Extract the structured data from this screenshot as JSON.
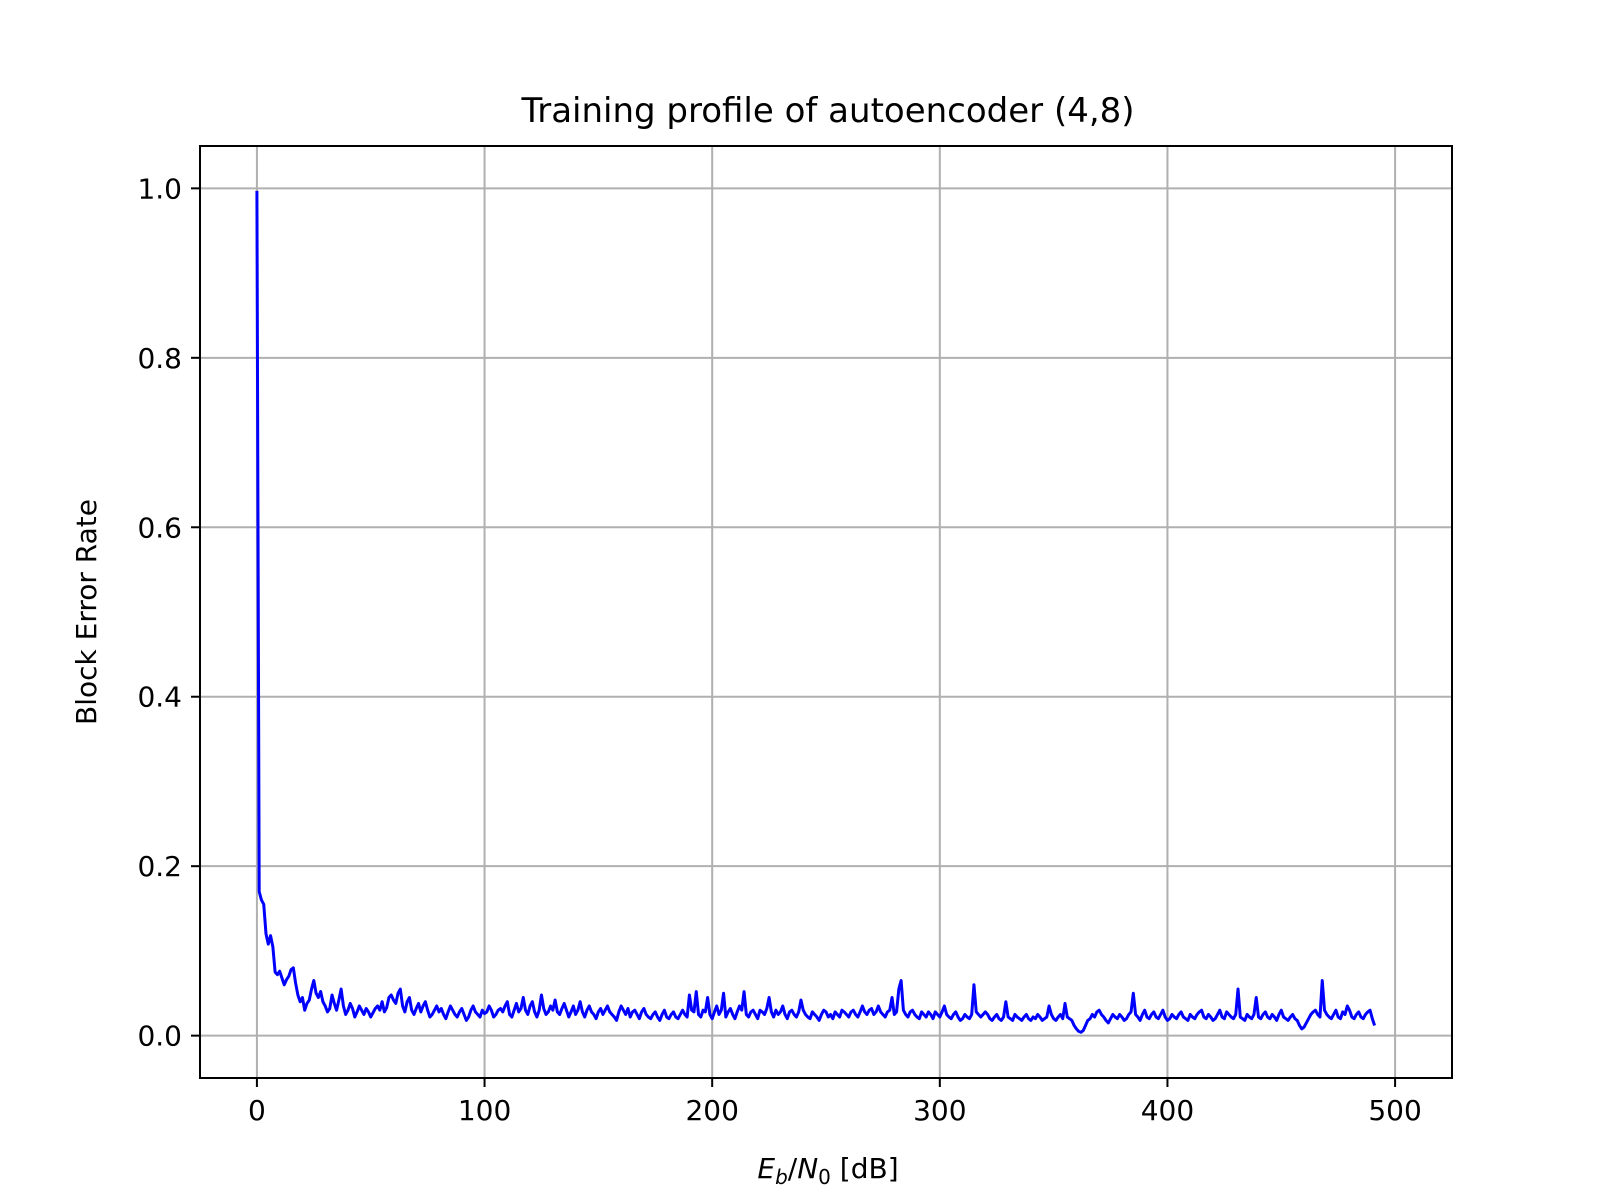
{
  "chart_data": {
    "type": "line",
    "title": "Training profile of autoencoder (4,8)",
    "xlabel": {
      "main_1": "E",
      "sub_1": "b",
      "slash": "/",
      "main_2": "N",
      "sub_2": "0",
      "unit": " [dB]"
    },
    "ylabel": "Block Error Rate",
    "xlim": [
      -25,
      525
    ],
    "ylim": [
      -0.05,
      1.05
    ],
    "grid": true,
    "xticks": [
      0,
      100,
      200,
      300,
      400,
      500
    ],
    "xtick_labels": [
      "0",
      "100",
      "200",
      "300",
      "400",
      "500"
    ],
    "yticks": [
      0.0,
      0.2,
      0.4,
      0.6,
      0.8,
      1.0
    ],
    "ytick_labels": [
      "0.0",
      "0.2",
      "0.4",
      "0.6",
      "0.8",
      "1.0"
    ],
    "series": [
      {
        "color": "#0000ff",
        "x_start": 0,
        "x_step": 1,
        "values": [
          0.997,
          0.17,
          0.16,
          0.155,
          0.12,
          0.108,
          0.118,
          0.105,
          0.075,
          0.072,
          0.076,
          0.068,
          0.06,
          0.066,
          0.07,
          0.078,
          0.08,
          0.062,
          0.048,
          0.04,
          0.045,
          0.03,
          0.038,
          0.042,
          0.055,
          0.065,
          0.05,
          0.045,
          0.052,
          0.04,
          0.035,
          0.028,
          0.032,
          0.048,
          0.038,
          0.03,
          0.042,
          0.055,
          0.035,
          0.025,
          0.03,
          0.038,
          0.032,
          0.022,
          0.028,
          0.035,
          0.03,
          0.025,
          0.032,
          0.028,
          0.022,
          0.027,
          0.032,
          0.035,
          0.03,
          0.04,
          0.028,
          0.033,
          0.045,
          0.048,
          0.042,
          0.038,
          0.05,
          0.055,
          0.035,
          0.028,
          0.04,
          0.045,
          0.03,
          0.025,
          0.032,
          0.038,
          0.028,
          0.035,
          0.04,
          0.03,
          0.022,
          0.025,
          0.03,
          0.035,
          0.028,
          0.032,
          0.025,
          0.02,
          0.028,
          0.035,
          0.03,
          0.025,
          0.022,
          0.028,
          0.032,
          0.025,
          0.018,
          0.022,
          0.03,
          0.035,
          0.028,
          0.025,
          0.022,
          0.03,
          0.026,
          0.028,
          0.035,
          0.03,
          0.022,
          0.025,
          0.03,
          0.032,
          0.028,
          0.035,
          0.04,
          0.025,
          0.022,
          0.03,
          0.038,
          0.028,
          0.032,
          0.045,
          0.03,
          0.025,
          0.035,
          0.04,
          0.028,
          0.022,
          0.03,
          0.048,
          0.032,
          0.025,
          0.028,
          0.035,
          0.03,
          0.042,
          0.028,
          0.025,
          0.032,
          0.038,
          0.03,
          0.022,
          0.028,
          0.035,
          0.025,
          0.03,
          0.04,
          0.028,
          0.022,
          0.03,
          0.035,
          0.028,
          0.025,
          0.02,
          0.028,
          0.032,
          0.025,
          0.03,
          0.035,
          0.028,
          0.025,
          0.022,
          0.018,
          0.028,
          0.035,
          0.03,
          0.025,
          0.032,
          0.022,
          0.028,
          0.03,
          0.025,
          0.02,
          0.028,
          0.032,
          0.025,
          0.022,
          0.02,
          0.025,
          0.028,
          0.022,
          0.018,
          0.025,
          0.03,
          0.022,
          0.02,
          0.025,
          0.028,
          0.022,
          0.02,
          0.025,
          0.03,
          0.025,
          0.022,
          0.048,
          0.03,
          0.028,
          0.052,
          0.025,
          0.022,
          0.03,
          0.028,
          0.045,
          0.025,
          0.02,
          0.028,
          0.035,
          0.025,
          0.03,
          0.05,
          0.022,
          0.028,
          0.032,
          0.025,
          0.02,
          0.028,
          0.035,
          0.03,
          0.052,
          0.025,
          0.022,
          0.028,
          0.03,
          0.025,
          0.02,
          0.03,
          0.028,
          0.025,
          0.032,
          0.045,
          0.028,
          0.022,
          0.03,
          0.025,
          0.028,
          0.035,
          0.025,
          0.02,
          0.028,
          0.03,
          0.025,
          0.022,
          0.028,
          0.042,
          0.03,
          0.025,
          0.022,
          0.02,
          0.028,
          0.025,
          0.022,
          0.018,
          0.025,
          0.03,
          0.028,
          0.022,
          0.025,
          0.02,
          0.028,
          0.025,
          0.022,
          0.03,
          0.028,
          0.025,
          0.022,
          0.028,
          0.03,
          0.025,
          0.022,
          0.028,
          0.035,
          0.028,
          0.025,
          0.03,
          0.032,
          0.025,
          0.028,
          0.035,
          0.028,
          0.025,
          0.022,
          0.028,
          0.03,
          0.045,
          0.025,
          0.028,
          0.055,
          0.065,
          0.03,
          0.025,
          0.022,
          0.028,
          0.03,
          0.025,
          0.022,
          0.02,
          0.028,
          0.025,
          0.022,
          0.028,
          0.025,
          0.02,
          0.028,
          0.025,
          0.022,
          0.028,
          0.035,
          0.025,
          0.022,
          0.02,
          0.025,
          0.028,
          0.022,
          0.018,
          0.02,
          0.025,
          0.022,
          0.02,
          0.025,
          0.06,
          0.028,
          0.025,
          0.022,
          0.025,
          0.028,
          0.025,
          0.02,
          0.018,
          0.022,
          0.025,
          0.02,
          0.018,
          0.022,
          0.04,
          0.022,
          0.02,
          0.018,
          0.025,
          0.022,
          0.02,
          0.018,
          0.022,
          0.025,
          0.02,
          0.018,
          0.022,
          0.02,
          0.025,
          0.022,
          0.018,
          0.02,
          0.022,
          0.035,
          0.025,
          0.02,
          0.018,
          0.022,
          0.025,
          0.02,
          0.038,
          0.022,
          0.02,
          0.018,
          0.012,
          0.008,
          0.005,
          0.004,
          0.006,
          0.012,
          0.018,
          0.02,
          0.025,
          0.022,
          0.028,
          0.03,
          0.025,
          0.022,
          0.018,
          0.015,
          0.02,
          0.025,
          0.022,
          0.02,
          0.025,
          0.022,
          0.018,
          0.02,
          0.025,
          0.028,
          0.05,
          0.025,
          0.022,
          0.018,
          0.025,
          0.03,
          0.022,
          0.02,
          0.025,
          0.028,
          0.022,
          0.02,
          0.025,
          0.03,
          0.022,
          0.018,
          0.02,
          0.025,
          0.022,
          0.02,
          0.025,
          0.028,
          0.022,
          0.02,
          0.018,
          0.025,
          0.022,
          0.02,
          0.025,
          0.028,
          0.03,
          0.022,
          0.02,
          0.025,
          0.022,
          0.018,
          0.02,
          0.025,
          0.03,
          0.022,
          0.02,
          0.028,
          0.025,
          0.022,
          0.02,
          0.025,
          0.055,
          0.022,
          0.02,
          0.018,
          0.025,
          0.022,
          0.02,
          0.025,
          0.045,
          0.022,
          0.02,
          0.025,
          0.028,
          0.022,
          0.02,
          0.025,
          0.022,
          0.018,
          0.025,
          0.03,
          0.022,
          0.02,
          0.018,
          0.022,
          0.025,
          0.02,
          0.018,
          0.012,
          0.008,
          0.01,
          0.015,
          0.02,
          0.025,
          0.028,
          0.03,
          0.025,
          0.022,
          0.065,
          0.03,
          0.025,
          0.022,
          0.02,
          0.025,
          0.03,
          0.022,
          0.02,
          0.028,
          0.025,
          0.035,
          0.03,
          0.022,
          0.02,
          0.025,
          0.028,
          0.022,
          0.02,
          0.025,
          0.028,
          0.03,
          0.02,
          0.012
        ]
      }
    ]
  }
}
